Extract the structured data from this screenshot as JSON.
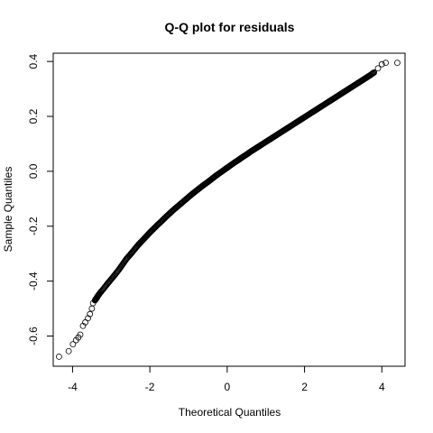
{
  "chart_data": {
    "type": "scatter",
    "title": "Q-Q plot for residuals",
    "xlabel": "Theoretical Quantiles",
    "ylabel": "Sample Quantiles",
    "xlim": [
      -4.5,
      4.6
    ],
    "ylim": [
      -0.71,
      0.43
    ],
    "xticks": [
      -4,
      -2,
      0,
      2,
      4
    ],
    "yticks": [
      -0.6,
      -0.4,
      -0.2,
      0.0,
      0.2,
      0.4
    ],
    "ytick_labels": [
      "-0.6",
      "-0.4",
      "-0.2",
      "0.0",
      "0.2",
      "0.4"
    ],
    "grid": false,
    "marker": "open-circle",
    "point_color": "#000000",
    "series": [
      {
        "x": [
          -4.35,
          -4.1,
          -3.99,
          -3.91,
          -3.85,
          -3.8,
          -3.73,
          -3.67,
          -3.6,
          -3.55,
          -3.5,
          -3.47,
          -3.42,
          -3.38,
          -3.35,
          -3.3,
          -3.2,
          -3.1,
          -3.0,
          -2.9,
          -2.8,
          -2.7,
          -2.6,
          -2.5,
          -2.4,
          -2.3,
          -2.2,
          -2.1,
          -2.0,
          -1.9,
          -1.8,
          -1.7,
          -1.6,
          -1.5,
          -1.4,
          -1.3,
          -1.2,
          -1.1,
          -1.0,
          -0.9,
          -0.8,
          -0.7,
          -0.6,
          -0.5,
          -0.4,
          -0.3,
          -0.2,
          -0.1,
          0.0,
          0.1,
          0.2,
          0.3,
          0.4,
          0.5,
          0.6,
          0.7,
          0.8,
          0.9,
          1.0,
          1.1,
          1.2,
          1.3,
          1.4,
          1.5,
          1.6,
          1.7,
          1.8,
          1.9,
          2.0,
          2.1,
          2.2,
          2.3,
          2.4,
          2.5,
          2.6,
          2.7,
          2.8,
          2.9,
          3.0,
          3.1,
          3.2,
          3.3,
          3.4,
          3.5,
          3.6,
          3.7,
          3.8,
          3.9,
          4.0,
          4.1,
          4.4
        ],
        "y": [
          -0.675,
          -0.655,
          -0.63,
          -0.615,
          -0.605,
          -0.595,
          -0.563,
          -0.55,
          -0.535,
          -0.52,
          -0.5,
          -0.48,
          -0.47,
          -0.462,
          -0.455,
          -0.445,
          -0.428,
          -0.41,
          -0.393,
          -0.376,
          -0.358,
          -0.338,
          -0.318,
          -0.302,
          -0.285,
          -0.268,
          -0.253,
          -0.238,
          -0.223,
          -0.209,
          -0.195,
          -0.182,
          -0.168,
          -0.155,
          -0.142,
          -0.13,
          -0.118,
          -0.106,
          -0.094,
          -0.082,
          -0.071,
          -0.06,
          -0.049,
          -0.039,
          -0.028,
          -0.017,
          -0.007,
          0.003,
          0.013,
          0.023,
          0.033,
          0.042,
          0.052,
          0.061,
          0.071,
          0.08,
          0.089,
          0.098,
          0.107,
          0.116,
          0.125,
          0.134,
          0.143,
          0.152,
          0.161,
          0.17,
          0.179,
          0.188,
          0.197,
          0.206,
          0.215,
          0.224,
          0.233,
          0.242,
          0.251,
          0.26,
          0.269,
          0.278,
          0.287,
          0.296,
          0.305,
          0.314,
          0.323,
          0.332,
          0.341,
          0.35,
          0.36,
          0.375,
          0.39,
          0.395,
          0.395
        ]
      }
    ]
  }
}
